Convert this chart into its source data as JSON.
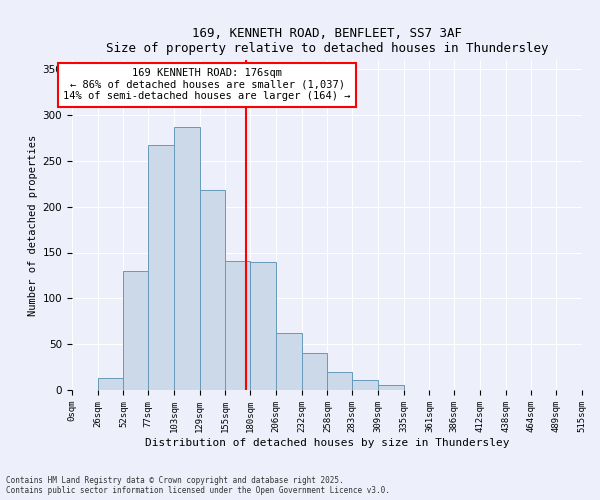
{
  "title1": "169, KENNETH ROAD, BENFLEET, SS7 3AF",
  "title2": "Size of property relative to detached houses in Thundersley",
  "xlabel": "Distribution of detached houses by size in Thundersley",
  "ylabel": "Number of detached properties",
  "bin_edges": [
    0,
    26,
    52,
    77,
    103,
    129,
    155,
    180,
    206,
    232,
    258,
    283,
    309,
    335,
    361,
    386,
    412,
    438,
    464,
    489,
    515
  ],
  "bar_heights": [
    0,
    13,
    130,
    267,
    287,
    218,
    141,
    140,
    62,
    40,
    20,
    11,
    5,
    0,
    0,
    0,
    0,
    0,
    0,
    0
  ],
  "bar_color": "#ccd9e8",
  "bar_edge_color": "#6699bb",
  "bar_edge_width": 0.7,
  "red_line_x": 176,
  "annotation_text": "169 KENNETH ROAD: 176sqm\n← 86% of detached houses are smaller (1,037)\n14% of semi-detached houses are larger (164) →",
  "annotation_box_color": "white",
  "annotation_box_edge_color": "red",
  "ylim": [
    0,
    360
  ],
  "yticks": [
    0,
    50,
    100,
    150,
    200,
    250,
    300,
    350
  ],
  "background_color": "#edf0fa",
  "grid_color": "#ffffff",
  "footer1": "Contains HM Land Registry data © Crown copyright and database right 2025.",
  "footer2": "Contains public sector information licensed under the Open Government Licence v3.0.",
  "tick_labels": [
    "0sqm",
    "26sqm",
    "52sqm",
    "77sqm",
    "103sqm",
    "129sqm",
    "155sqm",
    "180sqm",
    "206sqm",
    "232sqm",
    "258sqm",
    "283sqm",
    "309sqm",
    "335sqm",
    "361sqm",
    "386sqm",
    "412sqm",
    "438sqm",
    "464sqm",
    "489sqm",
    "515sqm"
  ]
}
